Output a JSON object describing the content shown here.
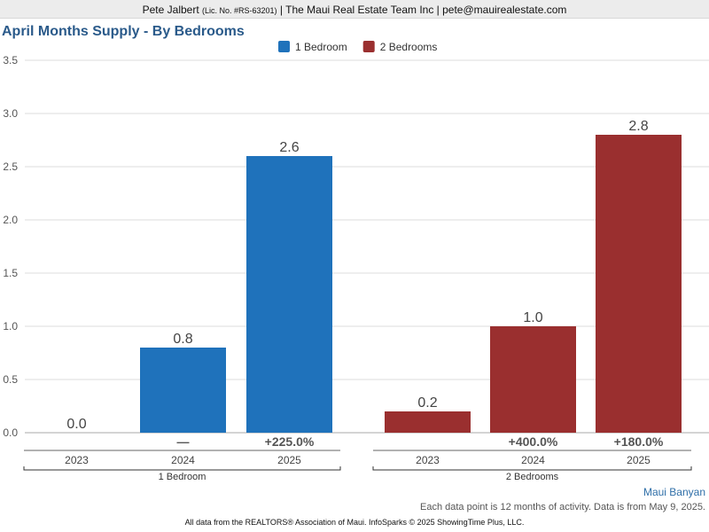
{
  "header": {
    "agent_name": "Pete Jalbert",
    "license": "(Lic. No. #RS-63201)",
    "company_and_email": "| The Maui Real Estate Team Inc | pete@mauirealestate.com"
  },
  "chart_data": {
    "type": "bar",
    "title": "April Months Supply - By Bedrooms",
    "ylim": [
      0,
      3.5
    ],
    "yticks": [
      "0.0",
      "0.5",
      "1.0",
      "1.5",
      "2.0",
      "2.5",
      "3.0",
      "3.5"
    ],
    "grid": true,
    "legend_position": "top-center",
    "groups": [
      {
        "name": "1 Bedroom",
        "color": "#1f72bb",
        "categories": [
          "2023",
          "2024",
          "2025"
        ],
        "values": [
          0.0,
          0.8,
          2.6
        ],
        "value_labels": [
          "0.0",
          "0.8",
          "2.6"
        ],
        "changes": [
          "",
          "—",
          "+225.0%"
        ]
      },
      {
        "name": "2 Bedrooms",
        "color": "#9a2f2f",
        "categories": [
          "2023",
          "2024",
          "2025"
        ],
        "values": [
          0.2,
          1.0,
          2.8
        ],
        "value_labels": [
          "0.2",
          "1.0",
          "2.8"
        ],
        "changes": [
          "",
          "+400.0%",
          "+180.0%"
        ]
      }
    ]
  },
  "footer": {
    "source_link": "Maui Banyan",
    "note": "Each data point is 12 months of activity. Data is from May 9, 2025.",
    "attribution": "All data from the REALTORS® Association of Maui. InfoSparks © 2025 ShowingTime Plus, LLC."
  }
}
